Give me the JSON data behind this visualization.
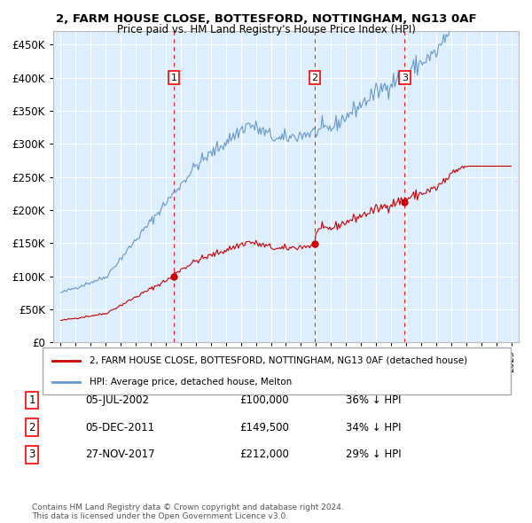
{
  "title1": "2, FARM HOUSE CLOSE, BOTTESFORD, NOTTINGHAM, NG13 0AF",
  "title2": "Price paid vs. HM Land Registry's House Price Index (HPI)",
  "legend_property": "2, FARM HOUSE CLOSE, BOTTESFORD, NOTTINGHAM, NG13 0AF (detached house)",
  "legend_hpi": "HPI: Average price, detached house, Melton",
  "sales": [
    {
      "num": 1,
      "date_label": "05-JUL-2002",
      "date_x": 2002.54,
      "price": 100000,
      "pct": "36% ↓ HPI"
    },
    {
      "num": 2,
      "date_label": "05-DEC-2011",
      "date_x": 2011.92,
      "price": 149500,
      "pct": "34% ↓ HPI"
    },
    {
      "num": 3,
      "date_label": "27-NOV-2017",
      "date_x": 2017.9,
      "price": 212000,
      "pct": "29% ↓ HPI"
    }
  ],
  "yticks": [
    0,
    50000,
    100000,
    150000,
    200000,
    250000,
    300000,
    350000,
    400000,
    450000
  ],
  "xlim": [
    1994.5,
    2025.5
  ],
  "ylim": [
    0,
    470000
  ],
  "property_color": "#cc0000",
  "hpi_color": "#6699cc",
  "bg_color": "#ddeeff",
  "grid_color": "#ffffff",
  "footnote": "Contains HM Land Registry data © Crown copyright and database right 2024.\nThis data is licensed under the Open Government Licence v3.0."
}
